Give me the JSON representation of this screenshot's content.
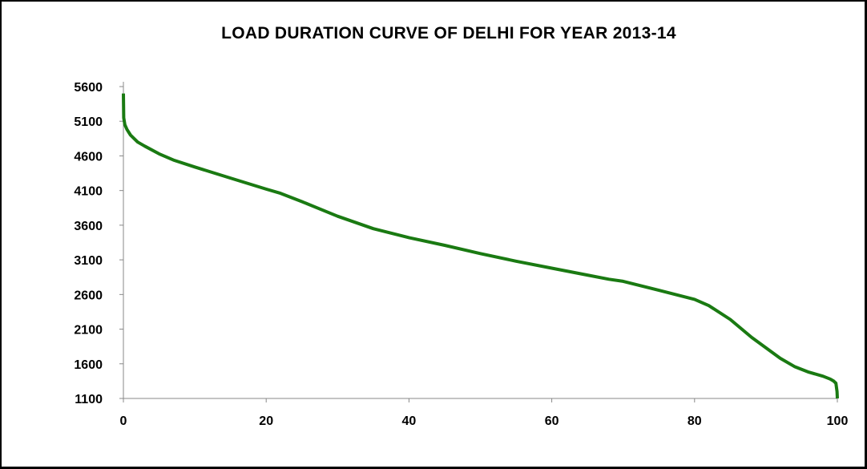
{
  "chart_data": {
    "type": "line",
    "title": "LOAD DURATION CURVE OF DELHI FOR YEAR 2013-14",
    "xlabel": "",
    "ylabel": "",
    "xlim": [
      0,
      100
    ],
    "ylim": [
      1100,
      5600
    ],
    "x_ticks": [
      "0",
      "20",
      "40",
      "60",
      "80",
      "100"
    ],
    "y_ticks": [
      "5600",
      "5100",
      "4600",
      "4100",
      "3600",
      "3100",
      "2600",
      "2100",
      "1600",
      "1100"
    ],
    "grid": false,
    "line_color": "#1a7a12",
    "series": [
      {
        "x": [
          0,
          0.05,
          0.2,
          0.5,
          1,
          2,
          3,
          5,
          7,
          10,
          15,
          20,
          22,
          25,
          30,
          35,
          40,
          45,
          50,
          55,
          60,
          65,
          68,
          70,
          75,
          80,
          82,
          85,
          88,
          90,
          92,
          94,
          96,
          98,
          99,
          99.5,
          99.8,
          99.95,
          100
        ],
        "y": [
          5500,
          5150,
          5050,
          4980,
          4900,
          4800,
          4740,
          4630,
          4540,
          4440,
          4280,
          4120,
          4060,
          3940,
          3730,
          3550,
          3420,
          3310,
          3190,
          3080,
          2980,
          2880,
          2820,
          2790,
          2660,
          2530,
          2440,
          2240,
          1980,
          1830,
          1680,
          1560,
          1480,
          1420,
          1380,
          1350,
          1320,
          1200,
          1100
        ]
      }
    ]
  }
}
